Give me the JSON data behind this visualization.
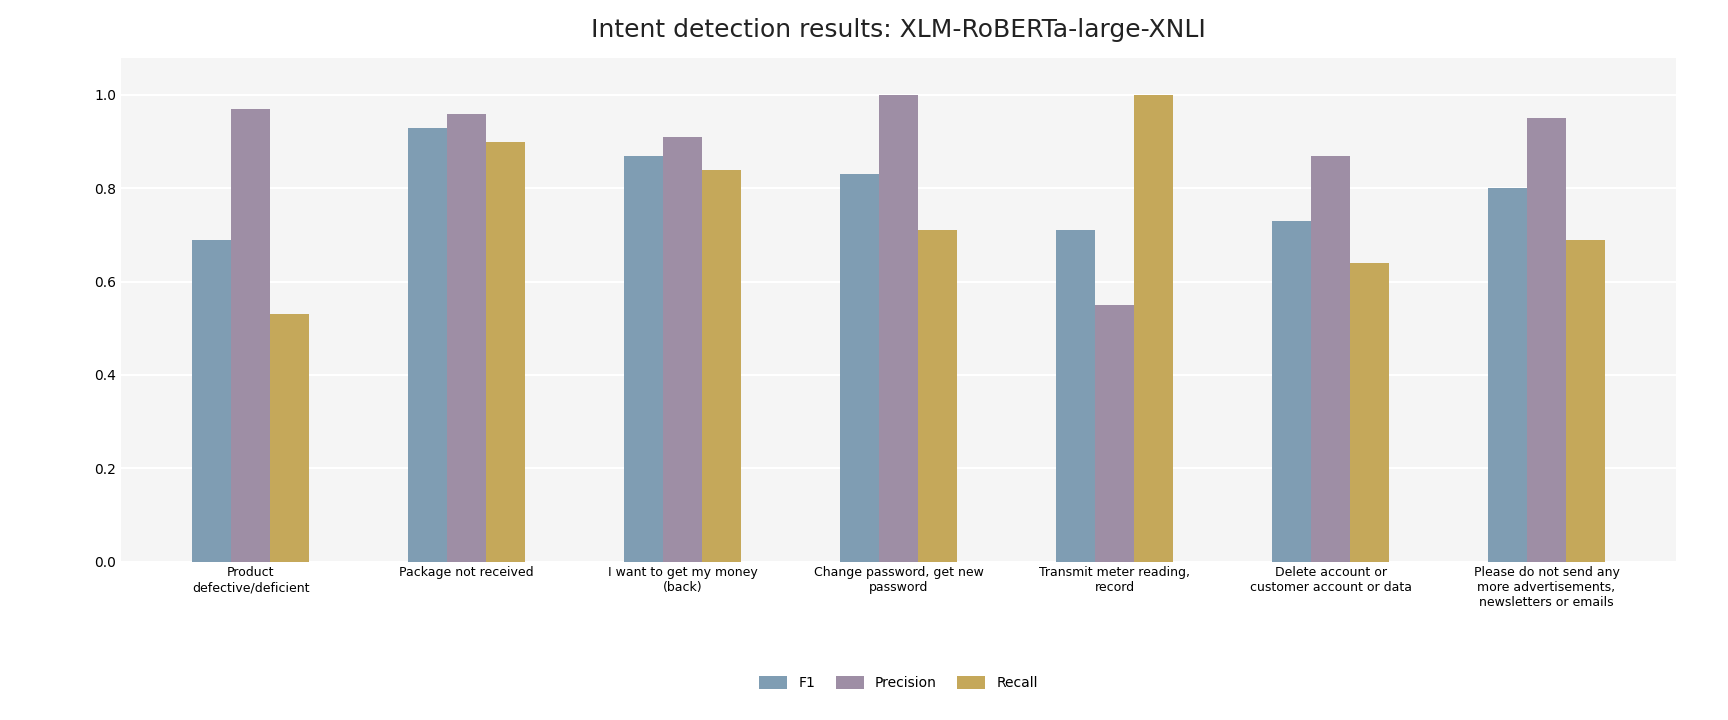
{
  "title": "Intent detection results: XLM-RoBERTa-large-XNLI",
  "categories": [
    "Product\ndefective/deficient",
    "Package not received",
    "I want to get my money\n(back)",
    "Change password, get new\npassword",
    "Transmit meter reading,\nrecord",
    "Delete account or\ncustomer account or data",
    "Please do not send any\nmore advertisements,\nnewsletters or emails"
  ],
  "f1": [
    0.69,
    0.93,
    0.87,
    0.83,
    0.71,
    0.73,
    0.8
  ],
  "precision": [
    0.97,
    0.96,
    0.91,
    1.0,
    0.55,
    0.87,
    0.95
  ],
  "recall": [
    0.53,
    0.9,
    0.84,
    0.71,
    1.0,
    0.64,
    0.69
  ],
  "f1_color": "#7f9db3",
  "precision_color": "#9e8ea5",
  "recall_color": "#c5a85a",
  "bar_width": 0.18,
  "ylim": [
    0.0,
    1.08
  ],
  "yticks": [
    0.0,
    0.2,
    0.4,
    0.6,
    0.8,
    1.0
  ],
  "legend_labels": [
    "F1",
    "Precision",
    "Recall"
  ],
  "background_color": "#ffffff",
  "plot_bg_color": "#f5f5f5",
  "grid_color": "#ffffff",
  "title_fontsize": 18
}
